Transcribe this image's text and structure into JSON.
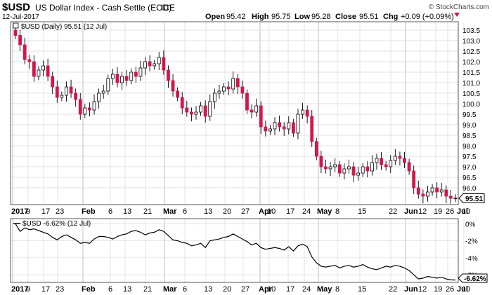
{
  "header": {
    "symbol": "$USD",
    "name": "US Dollar Index - Cash Settle (EOD)",
    "exchange": "ICE",
    "date": "12-Jul-2017",
    "open_label": "Open",
    "open_value": "95.42",
    "high_label": "High",
    "high_value": "95.75",
    "low_label": "Low",
    "low_value": "95.28",
    "close_label": "Close",
    "close_value": "95.51",
    "chg_label": "Chg",
    "chg_value": "+0.09 (+0.09%)",
    "copyright": "© StockCharts.com"
  },
  "colors": {
    "up": "#ffffff",
    "down": "#d1174a",
    "outline": "#000000",
    "grid": "#d8d8d8",
    "line": "#000000"
  },
  "chart_data": [
    {
      "type": "candlestick",
      "legend": "$USD (Daily) 95.51 (12 Jul)",
      "ylim": [
        95.2,
        103.9
      ],
      "y_ticks": [
        96.0,
        96.5,
        97.0,
        97.5,
        98.0,
        98.5,
        99.0,
        99.5,
        100.0,
        100.5,
        101.0,
        101.5,
        102.0,
        102.5,
        103.0,
        103.5
      ],
      "y_tick_labels": [
        "96.0",
        "96.5",
        "97.0",
        "97.5",
        "98.0",
        "98.5",
        "99.0",
        "99.5",
        "100.0",
        "100.5",
        "101.0",
        "101.5",
        "102.0",
        "102.5",
        "103.0",
        "103.5"
      ],
      "last_label": "95.51",
      "x_tick_labels": [
        "2017",
        "9",
        "17",
        "23",
        "Feb",
        "6",
        "13",
        "21",
        "Mar",
        "6",
        "13",
        "20",
        "27",
        "Apr",
        "10",
        "17",
        "24",
        "May",
        "8",
        "15",
        "22",
        "Jun",
        "12",
        "19",
        "26",
        "Jul",
        "10"
      ],
      "major_months": [
        "2017",
        "Feb",
        "Mar",
        "Apr",
        "May",
        "Jun",
        "Jul"
      ],
      "close": [
        103.25,
        102.8,
        102.1,
        102.0,
        101.3,
        101.6,
        101.8,
        101.3,
        100.8,
        100.3,
        100.4,
        100.8,
        100.5,
        100.2,
        99.5,
        99.8,
        99.7,
        100.1,
        100.5,
        100.6,
        101.2,
        101.4,
        101.0,
        101.3,
        101.1,
        101.5,
        101.3,
        101.7,
        102.0,
        101.8,
        101.9,
        102.2,
        101.6,
        101.1,
        100.6,
        100.3,
        99.8,
        99.6,
        99.5,
        99.6,
        99.9,
        99.4,
        100.1,
        100.5,
        100.6,
        100.8,
        100.7,
        101.2,
        100.8,
        100.5,
        99.7,
        99.6,
        99.9,
        98.9,
        98.7,
        98.8,
        99.1,
        98.9,
        98.8,
        99.1,
        98.6,
        99.5,
        99.7,
        99.4,
        98.2,
        97.5,
        97.0,
        96.9,
        97.0,
        97.1,
        96.7,
        96.9,
        97.0,
        96.6,
        96.7,
        97.0,
        96.8,
        97.2,
        97.4,
        97.1,
        97.0,
        97.3,
        97.5,
        97.4,
        97.2,
        96.8,
        96.0,
        95.7,
        95.6,
        95.8,
        96.0,
        95.8,
        95.9,
        95.6,
        95.5,
        95.51
      ],
      "pct_legend": "$USD -6.62% (12 Jul)",
      "pct_ylim": [
        -6.9,
        0.6
      ],
      "pct_ticks": [
        0,
        -2,
        -4,
        -6
      ],
      "pct_tick_labels": [
        "0%",
        "-2%",
        "-4%",
        "-6%"
      ],
      "pct_last_label": "-6.62%",
      "pct_values": [
        0.0,
        -0.9,
        -0.5,
        -0.7,
        -0.6,
        -0.8,
        -1.0,
        -1.2,
        -1.6,
        -1.9,
        -1.5,
        -1.3,
        -1.6,
        -1.9,
        -2.3,
        -2.2,
        -2.3,
        -1.8,
        -1.5,
        -1.5,
        -1.6,
        -1.8,
        -1.5,
        -1.3,
        -1.2,
        -0.9,
        -0.8,
        -1.0,
        -1.3,
        -1.1,
        -1.0,
        -0.7,
        -0.9,
        -1.4,
        -1.9,
        -2.0,
        -2.2,
        -2.3,
        -2.6,
        -2.5,
        -2.3,
        -2.8,
        -2.0,
        -1.9,
        -1.8,
        -1.6,
        -1.5,
        -1.2,
        -1.5,
        -1.8,
        -2.1,
        -2.5,
        -2.3,
        -2.8,
        -3.0,
        -2.9,
        -2.8,
        -2.9,
        -3.1,
        -2.7,
        -3.2,
        -2.6,
        -2.4,
        -2.7,
        -3.9,
        -4.6,
        -5.0,
        -5.1,
        -5.0,
        -4.9,
        -5.2,
        -5.0,
        -4.9,
        -5.1,
        -5.0,
        -4.8,
        -5.1,
        -5.3,
        -5.4,
        -5.2,
        -5.0,
        -5.1,
        -4.9,
        -5.0,
        -5.2,
        -5.5,
        -6.0,
        -6.5,
        -6.4,
        -6.2,
        -6.3,
        -6.4,
        -6.3,
        -6.5,
        -6.6,
        -6.62
      ]
    }
  ]
}
